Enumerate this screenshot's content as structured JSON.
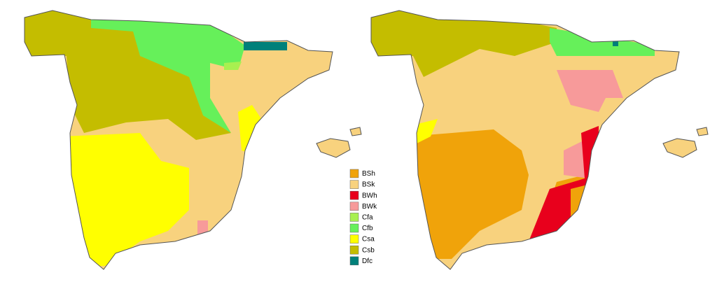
{
  "legend": {
    "items": [
      {
        "label": "BSh",
        "color": "#f0a30a"
      },
      {
        "label": "BSk",
        "color": "#f8d27e"
      },
      {
        "label": "BWh",
        "color": "#e8001c"
      },
      {
        "label": "BWk",
        "color": "#f79a9a"
      },
      {
        "label": "Cfa",
        "color": "#a8f050"
      },
      {
        "label": "Cfb",
        "color": "#66f05a"
      },
      {
        "label": "Csa",
        "color": "#ffff00"
      },
      {
        "label": "Csb",
        "color": "#c4bd00"
      },
      {
        "label": "Dfc",
        "color": "#00807a"
      }
    ]
  }
}
